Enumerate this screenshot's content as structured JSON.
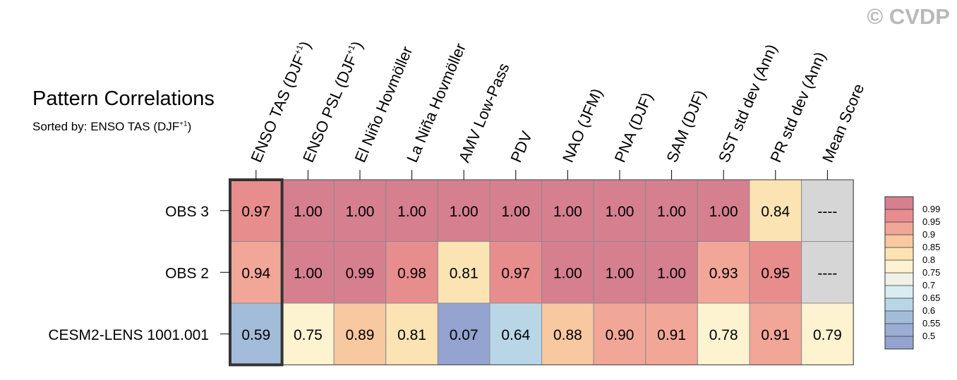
{
  "watermark": "© CVDP",
  "title": "Pattern Correlations",
  "subtitle": {
    "prefix": "Sorted by: ENSO TAS (DJF",
    "superscript": "+1",
    "suffix": ")"
  },
  "chart_data": {
    "type": "heatmap",
    "title": "Pattern Correlations",
    "columns": [
      {
        "text": "ENSO TAS (DJF",
        "sup": "+1",
        "after": ")"
      },
      {
        "text": "ENSO PSL (DJF",
        "sup": "+1",
        "after": ")"
      },
      {
        "text": "El Niño Hovmöller",
        "sup": "",
        "after": ""
      },
      {
        "text": "La Niña Hovmöller",
        "sup": "",
        "after": ""
      },
      {
        "text": "AMV Low-Pass",
        "sup": "",
        "after": ""
      },
      {
        "text": "PDV",
        "sup": "",
        "after": ""
      },
      {
        "text": "NAO (JFM)",
        "sup": "",
        "after": ""
      },
      {
        "text": "PNA (DJF)",
        "sup": "",
        "after": ""
      },
      {
        "text": "SAM (DJF)",
        "sup": "",
        "after": ""
      },
      {
        "text": "SST std dev (Ann)",
        "sup": "",
        "after": ""
      },
      {
        "text": "PR std dev (Ann)",
        "sup": "",
        "after": ""
      },
      {
        "text": "Mean Score",
        "sup": "",
        "after": ""
      }
    ],
    "rows": [
      "OBS 3",
      "OBS 2",
      "CESM2-LENS 1001.001"
    ],
    "values": [
      [
        0.97,
        1.0,
        1.0,
        1.0,
        1.0,
        1.0,
        1.0,
        1.0,
        1.0,
        1.0,
        0.84,
        null
      ],
      [
        0.94,
        1.0,
        0.99,
        0.98,
        0.81,
        0.97,
        1.0,
        1.0,
        1.0,
        0.93,
        0.95,
        null
      ],
      [
        0.59,
        0.75,
        0.89,
        0.81,
        0.07,
        0.64,
        0.88,
        0.9,
        0.91,
        0.78,
        0.91,
        0.79
      ]
    ],
    "labels": [
      [
        "0.97",
        "1.00",
        "1.00",
        "1.00",
        "1.00",
        "1.00",
        "1.00",
        "1.00",
        "1.00",
        "1.00",
        "0.84",
        "----"
      ],
      [
        "0.94",
        "1.00",
        "0.99",
        "0.98",
        "0.81",
        "0.97",
        "1.00",
        "1.00",
        "1.00",
        "0.93",
        "0.95",
        "----"
      ],
      [
        "0.59",
        "0.75",
        "0.89",
        "0.81",
        "0.07",
        "0.64",
        "0.88",
        "0.90",
        "0.91",
        "0.78",
        "0.91",
        "0.79"
      ]
    ],
    "highlighted_column": 0,
    "missing_color": "#d6d6d6",
    "colorbar": {
      "levels": [
        "0.99",
        "0.95",
        "0.9",
        "0.85",
        "0.8",
        "0.75",
        "0.7",
        "0.65",
        "0.6",
        "0.55",
        "0.5"
      ],
      "thresholds": [
        0.99,
        0.95,
        0.9,
        0.85,
        0.8,
        0.75,
        0.7,
        0.65,
        0.6,
        0.55,
        0.5
      ],
      "colors": [
        "#d57f8f",
        "#e88d8d",
        "#f2a698",
        "#f8c8a0",
        "#fce3b3",
        "#fdf3d1",
        "#f0f1e6",
        "#d8ecf2",
        "#b9d6e7",
        "#a3bcd9",
        "#9aaed4",
        "#94a3cf"
      ]
    }
  }
}
